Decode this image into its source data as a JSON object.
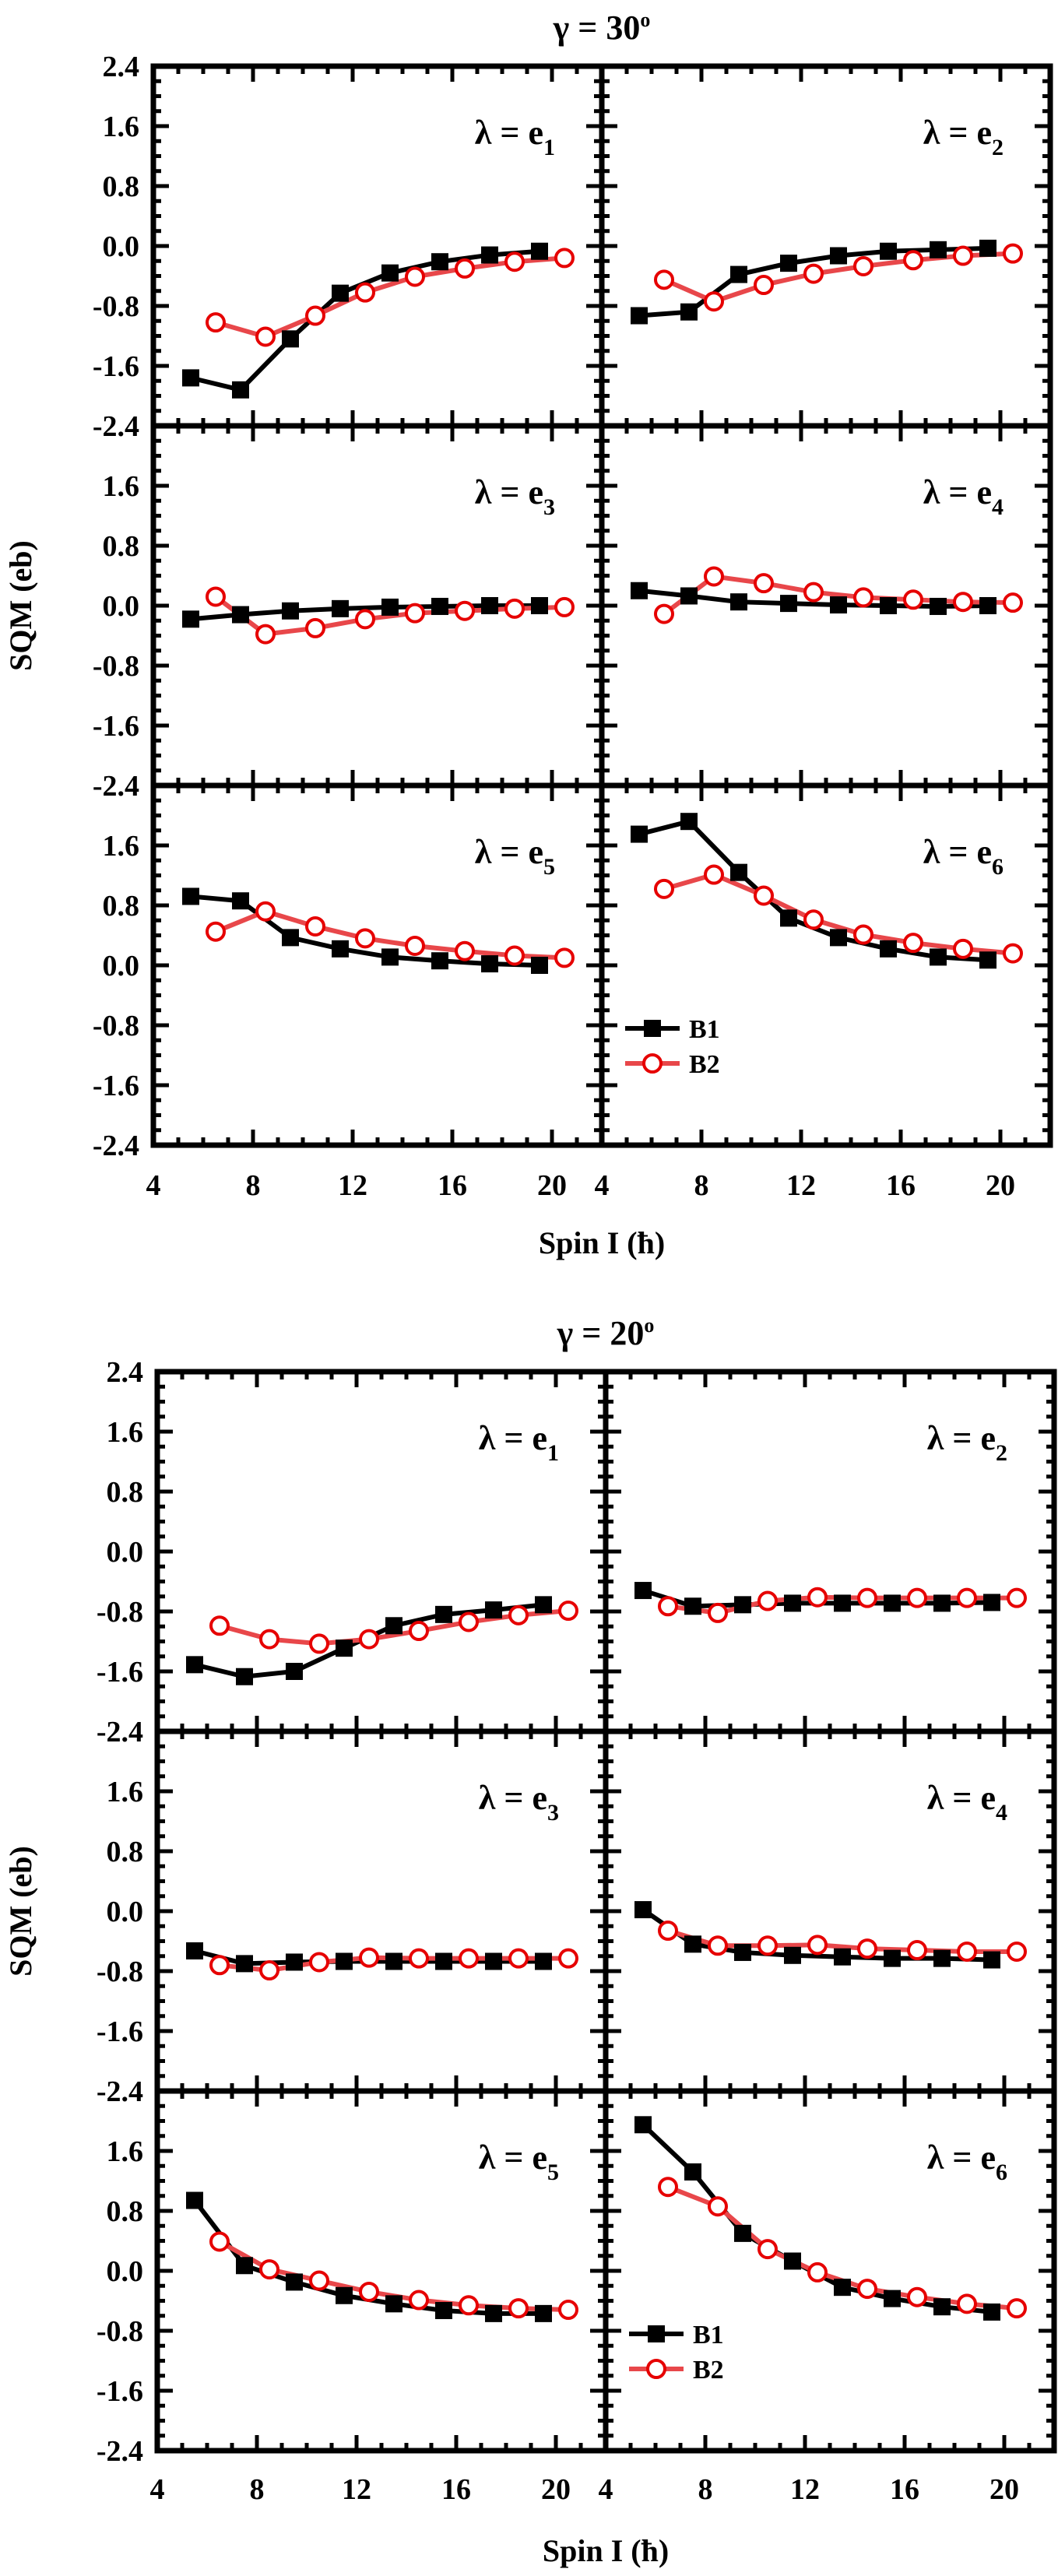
{
  "chart_data": [
    {
      "type": "line",
      "title": "γ = 30º",
      "title_symbol": "γ = 30",
      "title_sup": "o",
      "xlabel": "Spin I (ħ)",
      "ylabel": "SQM (eb)",
      "xlim": [
        4,
        22
      ],
      "ylim": [
        -2.4,
        2.4
      ],
      "xticks": [
        "4",
        "8",
        "12",
        "16",
        "20"
      ],
      "yticks": [
        "2.4",
        "1.6",
        "0.8",
        "0.0",
        "-0.8",
        "-1.6",
        "-2.4"
      ],
      "legend": {
        "entries": [
          "B1",
          "B2"
        ],
        "panel": "e6",
        "placement": "bottom-left"
      },
      "panels": [
        {
          "label": "λ = e",
          "sub": "1",
          "B1": {
            "x": [
              5.5,
              7.5,
              9.5,
              11.5,
              13.5,
              15.5,
              17.5,
              19.5
            ],
            "y": [
              -1.76,
              -1.92,
              -1.24,
              -0.63,
              -0.36,
              -0.21,
              -0.12,
              -0.07
            ]
          },
          "B2": {
            "x": [
              6.5,
              8.5,
              10.5,
              12.5,
              14.5,
              16.5,
              18.5,
              20.5
            ],
            "y": [
              -1.02,
              -1.21,
              -0.93,
              -0.62,
              -0.41,
              -0.3,
              -0.21,
              -0.16
            ]
          }
        },
        {
          "label": "λ = e",
          "sub": "2",
          "B1": {
            "x": [
              5.5,
              7.5,
              9.5,
              11.5,
              13.5,
              15.5,
              17.5,
              19.5
            ],
            "y": [
              -0.93,
              -0.88,
              -0.38,
              -0.23,
              -0.13,
              -0.07,
              -0.05,
              -0.03
            ]
          },
          "B2": {
            "x": [
              6.5,
              8.5,
              10.5,
              12.5,
              14.5,
              16.5,
              18.5,
              20.5
            ],
            "y": [
              -0.45,
              -0.74,
              -0.52,
              -0.37,
              -0.27,
              -0.19,
              -0.13,
              -0.1
            ]
          }
        },
        {
          "label": "λ = e",
          "sub": "3",
          "B1": {
            "x": [
              5.5,
              7.5,
              9.5,
              11.5,
              13.5,
              15.5,
              17.5,
              19.5
            ],
            "y": [
              -0.18,
              -0.12,
              -0.07,
              -0.04,
              -0.02,
              -0.01,
              0.0,
              0.0
            ]
          },
          "B2": {
            "x": [
              6.5,
              8.5,
              10.5,
              12.5,
              14.5,
              16.5,
              18.5,
              20.5
            ],
            "y": [
              0.12,
              -0.38,
              -0.3,
              -0.18,
              -0.1,
              -0.07,
              -0.04,
              -0.02
            ]
          }
        },
        {
          "label": "λ = e",
          "sub": "4",
          "B1": {
            "x": [
              5.5,
              7.5,
              9.5,
              11.5,
              13.5,
              15.5,
              17.5,
              19.5
            ],
            "y": [
              0.2,
              0.13,
              0.05,
              0.03,
              0.01,
              0.0,
              -0.01,
              0.0
            ]
          },
          "B2": {
            "x": [
              6.5,
              8.5,
              10.5,
              12.5,
              14.5,
              16.5,
              18.5,
              20.5
            ],
            "y": [
              -0.11,
              0.39,
              0.3,
              0.18,
              0.11,
              0.08,
              0.05,
              0.04
            ]
          }
        },
        {
          "label": "λ = e",
          "sub": "5",
          "B1": {
            "x": [
              5.5,
              7.5,
              9.5,
              11.5,
              13.5,
              15.5,
              17.5,
              19.5
            ],
            "y": [
              0.92,
              0.86,
              0.37,
              0.22,
              0.11,
              0.06,
              0.02,
              0.0
            ]
          },
          "B2": {
            "x": [
              6.5,
              8.5,
              10.5,
              12.5,
              14.5,
              16.5,
              18.5,
              20.5
            ],
            "y": [
              0.45,
              0.72,
              0.52,
              0.36,
              0.26,
              0.19,
              0.13,
              0.1
            ]
          }
        },
        {
          "label": "λ = e",
          "sub": "6",
          "B1": {
            "x": [
              5.5,
              7.5,
              9.5,
              11.5,
              13.5,
              15.5,
              17.5,
              19.5
            ],
            "y": [
              1.75,
              1.92,
              1.24,
              0.63,
              0.37,
              0.22,
              0.11,
              0.07
            ]
          },
          "B2": {
            "x": [
              6.5,
              8.5,
              10.5,
              12.5,
              14.5,
              16.5,
              18.5,
              20.5
            ],
            "y": [
              1.02,
              1.21,
              0.93,
              0.61,
              0.41,
              0.3,
              0.22,
              0.16
            ]
          }
        }
      ]
    },
    {
      "type": "line",
      "title": "γ = 20º",
      "title_symbol": "γ = 20",
      "title_sup": "o",
      "xlabel": "Spin I (ħ)",
      "ylabel": "SQM (eb)",
      "xlim": [
        4,
        22
      ],
      "ylim": [
        -2.4,
        2.4
      ],
      "xticks": [
        "4",
        "8",
        "12",
        "16",
        "20"
      ],
      "yticks": [
        "2.4",
        "1.6",
        "0.8",
        "0.0",
        "-0.8",
        "-1.6",
        "-2.4"
      ],
      "legend": {
        "entries": [
          "B1",
          "B2"
        ],
        "panel": "e6",
        "placement": "bottom-left"
      },
      "panels": [
        {
          "label": "λ = e",
          "sub": "1",
          "B1": {
            "x": [
              5.5,
              7.5,
              9.5,
              11.5,
              13.5,
              15.5,
              17.5,
              19.5
            ],
            "y": [
              -1.51,
              -1.67,
              -1.6,
              -1.29,
              -0.99,
              -0.84,
              -0.78,
              -0.71
            ]
          },
          "B2": {
            "x": [
              6.5,
              8.5,
              10.5,
              12.5,
              14.5,
              16.5,
              18.5,
              20.5
            ],
            "y": [
              -0.99,
              -1.17,
              -1.23,
              -1.17,
              -1.06,
              -0.94,
              -0.85,
              -0.79
            ]
          }
        },
        {
          "label": "λ = e",
          "sub": "2",
          "B1": {
            "x": [
              5.5,
              7.5,
              9.5,
              11.5,
              13.5,
              15.5,
              17.5,
              19.5
            ],
            "y": [
              -0.52,
              -0.73,
              -0.71,
              -0.69,
              -0.69,
              -0.69,
              -0.69,
              -0.68
            ]
          },
          "B2": {
            "x": [
              6.5,
              8.5,
              10.5,
              12.5,
              14.5,
              16.5,
              18.5,
              20.5
            ],
            "y": [
              -0.73,
              -0.82,
              -0.66,
              -0.61,
              -0.62,
              -0.62,
              -0.62,
              -0.62
            ]
          }
        },
        {
          "label": "λ = e",
          "sub": "3",
          "B1": {
            "x": [
              5.5,
              7.5,
              9.5,
              11.5,
              13.5,
              15.5,
              17.5,
              19.5
            ],
            "y": [
              -0.53,
              -0.7,
              -0.68,
              -0.67,
              -0.67,
              -0.67,
              -0.67,
              -0.67
            ]
          },
          "B2": {
            "x": [
              6.5,
              8.5,
              10.5,
              12.5,
              14.5,
              16.5,
              18.5,
              20.5
            ],
            "y": [
              -0.72,
              -0.79,
              -0.68,
              -0.62,
              -0.63,
              -0.63,
              -0.63,
              -0.63
            ]
          }
        },
        {
          "label": "λ = e",
          "sub": "4",
          "B1": {
            "x": [
              5.5,
              7.5,
              9.5,
              11.5,
              13.5,
              15.5,
              17.5,
              19.5
            ],
            "y": [
              0.02,
              -0.44,
              -0.55,
              -0.59,
              -0.61,
              -0.63,
              -0.63,
              -0.65
            ]
          },
          "B2": {
            "x": [
              6.5,
              8.5,
              10.5,
              12.5,
              14.5,
              16.5,
              18.5,
              20.5
            ],
            "y": [
              -0.26,
              -0.46,
              -0.46,
              -0.45,
              -0.5,
              -0.52,
              -0.54,
              -0.54
            ]
          }
        },
        {
          "label": "λ = e",
          "sub": "5",
          "B1": {
            "x": [
              5.5,
              7.5,
              9.5,
              11.5,
              13.5,
              15.5,
              17.5,
              19.5
            ],
            "y": [
              0.94,
              0.07,
              -0.15,
              -0.33,
              -0.44,
              -0.53,
              -0.57,
              -0.57
            ]
          },
          "B2": {
            "x": [
              6.5,
              8.5,
              10.5,
              12.5,
              14.5,
              16.5,
              18.5,
              20.5
            ],
            "y": [
              0.39,
              0.02,
              -0.13,
              -0.28,
              -0.39,
              -0.46,
              -0.5,
              -0.52
            ]
          }
        },
        {
          "label": "λ = e",
          "sub": "6",
          "B1": {
            "x": [
              5.5,
              7.5,
              9.5,
              11.5,
              13.5,
              15.5,
              17.5,
              19.5
            ],
            "y": [
              1.95,
              1.32,
              0.5,
              0.13,
              -0.22,
              -0.37,
              -0.48,
              -0.55
            ]
          },
          "B2": {
            "x": [
              6.5,
              8.5,
              10.5,
              12.5,
              14.5,
              16.5,
              18.5,
              20.5
            ],
            "y": [
              1.12,
              0.86,
              0.29,
              -0.02,
              -0.24,
              -0.35,
              -0.44,
              -0.5
            ]
          }
        }
      ]
    }
  ],
  "colors": {
    "B1": "#000000",
    "B2_line": "#e8474a",
    "B2_marker": "#e60000"
  }
}
